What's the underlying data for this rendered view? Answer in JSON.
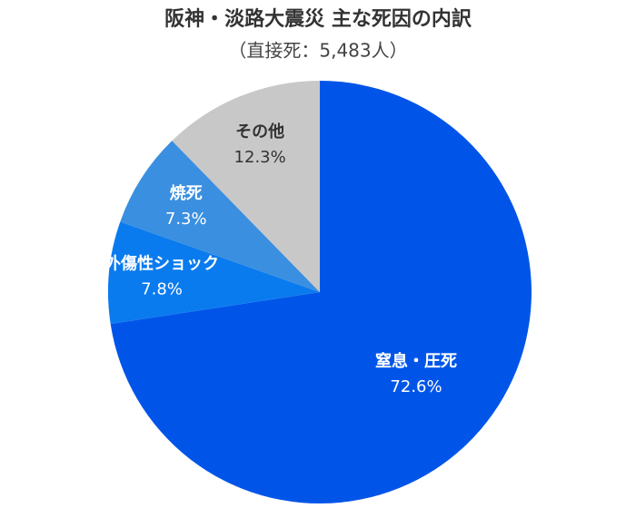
{
  "chart_data": {
    "type": "pie",
    "title": "阪神・淡路大震災 主な死因の内訳",
    "subtitle": "（直接死：5,483人）",
    "categories": [
      "窒息・圧死",
      "外傷性ショック",
      "焼死",
      "その他"
    ],
    "values": [
      72.6,
      7.8,
      7.3,
      12.3
    ],
    "value_labels": [
      "72.6%",
      "7.8%",
      "7.3%",
      "12.3%"
    ],
    "colors": [
      "#0055e8",
      "#0a7bef",
      "#3a8fe0",
      "#c8c8c8"
    ]
  }
}
